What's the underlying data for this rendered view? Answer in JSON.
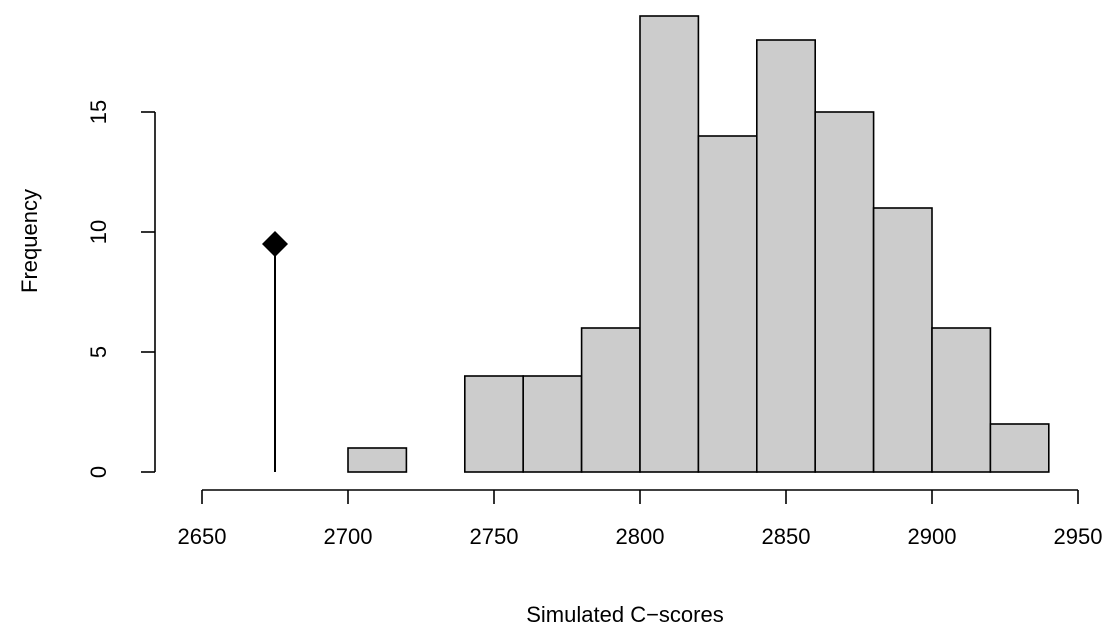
{
  "chart_data": {
    "type": "bar",
    "subtype": "histogram",
    "title": "",
    "xlabel": "Simulated C−scores",
    "ylabel": "Frequency",
    "bin_edges": [
      2700,
      2720,
      2740,
      2760,
      2780,
      2800,
      2820,
      2840,
      2860,
      2880,
      2900,
      2920,
      2940
    ],
    "values": [
      1,
      0,
      4,
      4,
      6,
      19,
      14,
      18,
      15,
      11,
      6,
      2
    ],
    "xlim": [
      2650,
      2950
    ],
    "ylim": [
      0,
      19
    ],
    "x_ticks": [
      2650,
      2700,
      2750,
      2800,
      2850,
      2900,
      2950
    ],
    "x_tick_labels": [
      "2650",
      "2700",
      "2750",
      "2800",
      "2850",
      "2900",
      "2950"
    ],
    "y_ticks": [
      0,
      5,
      10,
      15
    ],
    "y_tick_labels": [
      "0",
      "5",
      "10",
      "15"
    ],
    "observed_marker": {
      "x": 2675,
      "y": 9.5,
      "shape": "diamond",
      "line_to_zero": true
    },
    "bar_fill": "#cccccc",
    "bar_stroke": "#000000",
    "grid": false,
    "legend": "none"
  }
}
